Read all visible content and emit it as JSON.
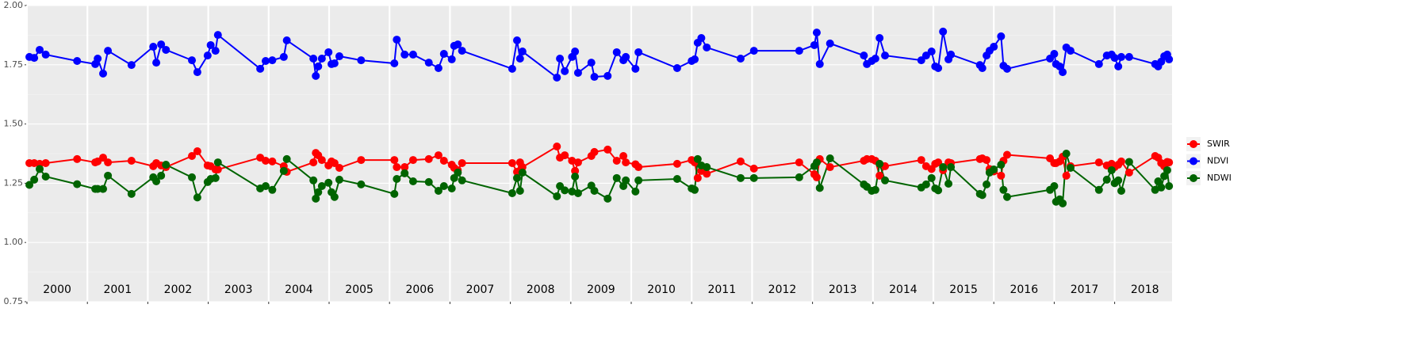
{
  "chart_data": {
    "type": "line",
    "x": [
      2000.04,
      2000.12,
      2000.21,
      2000.31,
      2000.83,
      2001.13,
      2001.17,
      2001.26,
      2001.34,
      2001.73,
      2002.09,
      2002.14,
      2002.22,
      2002.3,
      2002.73,
      2002.82,
      2002.99,
      2003.04,
      2003.12,
      2003.16,
      2003.86,
      2003.95,
      2004.06,
      2004.25,
      2004.3,
      2004.74,
      2004.78,
      2004.82,
      2004.88,
      2004.99,
      2005.04,
      2005.09,
      2005.17,
      2005.53,
      2006.08,
      2006.12,
      2006.25,
      2006.39,
      2006.65,
      2006.81,
      2006.9,
      2007.03,
      2007.07,
      2007.13,
      2007.2,
      2008.03,
      2008.11,
      2008.16,
      2008.2,
      2008.77,
      2008.82,
      2008.9,
      2009.02,
      2009.07,
      2009.12,
      2009.34,
      2009.39,
      2009.61,
      2009.76,
      2009.87,
      2009.91,
      2010.07,
      2010.12,
      2010.76,
      2011.0,
      2011.05,
      2011.1,
      2011.16,
      2011.25,
      2011.81,
      2012.03,
      2012.78,
      2013.03,
      2013.07,
      2013.12,
      2013.29,
      2013.85,
      2013.9,
      2013.98,
      2014.04,
      2014.11,
      2014.2,
      2014.8,
      2014.88,
      2014.97,
      2015.03,
      2015.08,
      2015.16,
      2015.25,
      2015.29,
      2015.77,
      2015.81,
      2015.88,
      2015.93,
      2016.0,
      2016.12,
      2016.16,
      2016.22,
      2016.93,
      2017.0,
      2017.03,
      2017.09,
      2017.14,
      2017.2,
      2017.27,
      2017.74,
      2017.87,
      2017.95,
      2018.0,
      2018.06,
      2018.11,
      2018.24,
      2018.67,
      2018.72,
      2018.77,
      2018.82,
      2018.87,
      2018.9
    ],
    "series": [
      {
        "name": "SWIR",
        "color": "#ff0000",
        "values": [
          1.335,
          1.335,
          1.332,
          1.335,
          1.352,
          1.338,
          1.342,
          1.358,
          1.338,
          1.345,
          1.322,
          1.335,
          1.325,
          1.318,
          1.365,
          1.385,
          1.325,
          1.322,
          1.308,
          1.308,
          1.358,
          1.345,
          1.342,
          1.322,
          1.298,
          1.338,
          1.378,
          1.368,
          1.348,
          1.325,
          1.342,
          1.335,
          1.315,
          1.348,
          1.348,
          1.318,
          1.318,
          1.348,
          1.352,
          1.368,
          1.345,
          1.328,
          1.315,
          1.305,
          1.335,
          1.335,
          1.298,
          1.338,
          1.318,
          1.405,
          1.358,
          1.368,
          1.345,
          1.302,
          1.338,
          1.365,
          1.382,
          1.392,
          1.345,
          1.365,
          1.338,
          1.33,
          1.318,
          1.332,
          1.348,
          1.338,
          1.272,
          1.302,
          1.29,
          1.342,
          1.312,
          1.338,
          1.288,
          1.275,
          1.352,
          1.318,
          1.345,
          1.352,
          1.352,
          1.345,
          1.282,
          1.322,
          1.348,
          1.322,
          1.31,
          1.332,
          1.338,
          1.305,
          1.338,
          1.335,
          1.352,
          1.355,
          1.348,
          1.31,
          1.3,
          1.282,
          1.345,
          1.37,
          1.355,
          1.335,
          1.335,
          1.342,
          1.362,
          1.282,
          1.322,
          1.338,
          1.325,
          1.332,
          1.318,
          1.328,
          1.342,
          1.295,
          1.365,
          1.358,
          1.335,
          1.322,
          1.34,
          1.338
        ]
      },
      {
        "name": "NDVI",
        "color": "#0000ff",
        "values": [
          1.783,
          1.779,
          1.813,
          1.793,
          1.766,
          1.753,
          1.776,
          1.713,
          1.809,
          1.749,
          1.826,
          1.759,
          1.836,
          1.813,
          1.769,
          1.719,
          1.789,
          1.833,
          1.809,
          1.876,
          1.733,
          1.766,
          1.769,
          1.783,
          1.853,
          1.776,
          1.703,
          1.743,
          1.776,
          1.803,
          1.753,
          1.756,
          1.786,
          1.769,
          1.756,
          1.856,
          1.793,
          1.793,
          1.759,
          1.736,
          1.796,
          1.773,
          1.83,
          1.836,
          1.809,
          1.733,
          1.853,
          1.776,
          1.806,
          1.696,
          1.776,
          1.723,
          1.783,
          1.806,
          1.716,
          1.759,
          1.699,
          1.703,
          1.803,
          1.769,
          1.783,
          1.733,
          1.803,
          1.736,
          1.766,
          1.773,
          1.843,
          1.863,
          1.823,
          1.776,
          1.809,
          1.809,
          1.833,
          1.886,
          1.753,
          1.84,
          1.789,
          1.753,
          1.766,
          1.776,
          1.863,
          1.789,
          1.769,
          1.789,
          1.806,
          1.743,
          1.736,
          1.89,
          1.773,
          1.793,
          1.749,
          1.736,
          1.789,
          1.809,
          1.826,
          1.87,
          1.746,
          1.733,
          1.776,
          1.796,
          1.753,
          1.743,
          1.719,
          1.823,
          1.809,
          1.753,
          1.789,
          1.793,
          1.779,
          1.743,
          1.783,
          1.783,
          1.753,
          1.743,
          1.763,
          1.786,
          1.793,
          1.773
        ]
      },
      {
        "name": "NDWI",
        "color": "#006400",
        "values": [
          1.243,
          1.265,
          1.31,
          1.278,
          1.246,
          1.226,
          1.226,
          1.226,
          1.282,
          1.205,
          1.275,
          1.258,
          1.282,
          1.328,
          1.275,
          1.19,
          1.255,
          1.268,
          1.272,
          1.338,
          1.228,
          1.238,
          1.222,
          1.302,
          1.352,
          1.262,
          1.185,
          1.212,
          1.238,
          1.252,
          1.212,
          1.192,
          1.265,
          1.245,
          1.205,
          1.268,
          1.292,
          1.258,
          1.255,
          1.218,
          1.238,
          1.228,
          1.272,
          1.295,
          1.262,
          1.208,
          1.272,
          1.218,
          1.295,
          1.195,
          1.238,
          1.22,
          1.215,
          1.278,
          1.208,
          1.24,
          1.218,
          1.185,
          1.272,
          1.238,
          1.262,
          1.215,
          1.262,
          1.268,
          1.228,
          1.222,
          1.352,
          1.325,
          1.318,
          1.272,
          1.272,
          1.275,
          1.322,
          1.338,
          1.23,
          1.355,
          1.245,
          1.235,
          1.218,
          1.222,
          1.332,
          1.262,
          1.232,
          1.245,
          1.272,
          1.228,
          1.22,
          1.318,
          1.248,
          1.318,
          1.205,
          1.2,
          1.245,
          1.295,
          1.308,
          1.328,
          1.222,
          1.192,
          1.222,
          1.238,
          1.172,
          1.182,
          1.165,
          1.375,
          1.315,
          1.222,
          1.265,
          1.305,
          1.25,
          1.262,
          1.218,
          1.34,
          1.222,
          1.258,
          1.232,
          1.28,
          1.305,
          1.238
        ]
      }
    ],
    "xlim": [
      2000,
      2018.95
    ],
    "xticks": [
      2000,
      2001,
      2002,
      2003,
      2004,
      2005,
      2006,
      2007,
      2008,
      2009,
      2010,
      2011,
      2012,
      2013,
      2014,
      2015,
      2016,
      2017,
      2018
    ],
    "ylim": [
      0.75,
      2.0
    ],
    "yticks": [
      0.75,
      {
        "value": 1,
        "label": "1.00"
      },
      1.25,
      {
        "value": 1.5,
        "label": "1.50"
      },
      1.75,
      {
        "value": 2,
        "label": "2.00"
      }
    ],
    "annotations": [
      {
        "x": 2000.5,
        "text": "2000"
      },
      {
        "x": 2001.5,
        "text": "2001"
      },
      {
        "x": 2002.5,
        "text": "2002"
      },
      {
        "x": 2003.5,
        "text": "2003"
      },
      {
        "x": 2004.5,
        "text": "2004"
      },
      {
        "x": 2005.5,
        "text": "2005"
      },
      {
        "x": 2006.5,
        "text": "2006"
      },
      {
        "x": 2007.5,
        "text": "2007"
      },
      {
        "x": 2008.5,
        "text": "2008"
      },
      {
        "x": 2009.5,
        "text": "2009"
      },
      {
        "x": 2010.5,
        "text": "2010"
      },
      {
        "x": 2011.5,
        "text": "2011"
      },
      {
        "x": 2012.5,
        "text": "2012"
      },
      {
        "x": 2013.5,
        "text": "2013"
      },
      {
        "x": 2014.5,
        "text": "2014"
      },
      {
        "x": 2015.5,
        "text": "2015"
      },
      {
        "x": 2016.5,
        "text": "2016"
      },
      {
        "x": 2017.5,
        "text": "2017"
      },
      {
        "x": 2018.5,
        "text": "2018"
      }
    ],
    "grid": true,
    "legend": "right"
  }
}
